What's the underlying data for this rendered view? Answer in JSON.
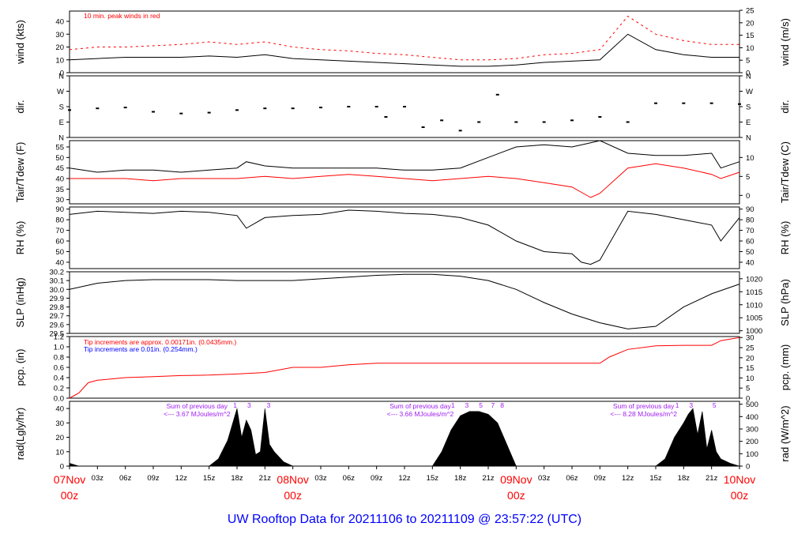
{
  "colors": {
    "black": "#000000",
    "red": "#ff0000",
    "blue": "#0000ff",
    "purple": "#a020f0",
    "title": "#0000ff"
  },
  "title": "UW Rooftop Data for 20211106  to  20211109 @ 23:57:22  (UTC)",
  "xaxis": {
    "day_labels": [
      {
        "hour": 0,
        "top": "07Nov",
        "bottom": "00z"
      },
      {
        "hour": 24,
        "top": "08Nov",
        "bottom": "00z"
      },
      {
        "hour": 48,
        "top": "09Nov",
        "bottom": "00z"
      },
      {
        "hour": 72,
        "top": "10Nov",
        "bottom": "00z"
      }
    ],
    "hour_ticks": [
      "03z",
      "06z",
      "09z",
      "12z",
      "15z",
      "18z",
      "21z"
    ],
    "range_hours": [
      0,
      72
    ]
  },
  "chart_data": [
    {
      "id": "wind",
      "type": "line",
      "ylabel": "wind (kts)",
      "ylabel_right": "wind (m/s)",
      "ylim": [
        0,
        48
      ],
      "yticks": [
        "0",
        "10",
        "20",
        "30",
        "40"
      ],
      "yticks_right": [
        "0",
        "5",
        "10",
        "15",
        "20",
        "25"
      ],
      "yticks_right_values": [
        0,
        5,
        10,
        15,
        20,
        25
      ],
      "annotation": "10 min. peak winds in red",
      "series": [
        {
          "name": "",
          "color": "black",
          "x": [
            0,
            3,
            6,
            9,
            12,
            15,
            18,
            21,
            24,
            27,
            30,
            33,
            36,
            39,
            42,
            45,
            48,
            51,
            54,
            57,
            60,
            63,
            66,
            69,
            72
          ],
          "values": [
            10,
            11,
            12,
            12,
            12,
            13,
            12,
            14,
            11,
            10,
            9,
            8,
            7,
            6,
            5,
            5,
            6,
            8,
            9,
            10,
            30,
            18,
            14,
            12,
            12
          ]
        },
        {
          "name": "10 min. peak winds",
          "color": "red",
          "x": [
            0,
            3,
            6,
            9,
            12,
            15,
            18,
            21,
            24,
            27,
            30,
            33,
            36,
            39,
            42,
            45,
            48,
            51,
            54,
            57,
            60,
            63,
            66,
            69,
            72
          ],
          "values": [
            18,
            20,
            20,
            21,
            22,
            24,
            22,
            24,
            20,
            18,
            17,
            15,
            14,
            12,
            10,
            10,
            11,
            14,
            15,
            18,
            44,
            30,
            25,
            22,
            22
          ]
        }
      ]
    },
    {
      "id": "dir",
      "type": "scatter",
      "ylabel": "dir.",
      "ylabel_right": "dir.",
      "ylim": [
        0,
        360
      ],
      "yticks": [
        "N",
        "E",
        "S",
        "W",
        "N"
      ],
      "yticks_right": [
        "N",
        "E",
        "S",
        "W",
        "N"
      ],
      "yticks_values": [
        0,
        90,
        180,
        270,
        360
      ],
      "series": [
        {
          "name": "",
          "color": "black",
          "x": [
            0,
            3,
            6,
            9,
            12,
            15,
            18,
            21,
            24,
            27,
            30,
            33,
            34,
            36,
            38,
            40,
            42,
            44,
            46,
            48,
            51,
            54,
            57,
            60,
            63,
            66,
            69,
            72
          ],
          "values": [
            160,
            170,
            175,
            150,
            140,
            145,
            160,
            170,
            170,
            175,
            180,
            180,
            120,
            180,
            60,
            100,
            40,
            90,
            250,
            90,
            90,
            100,
            120,
            90,
            200,
            200,
            200,
            195
          ]
        }
      ]
    },
    {
      "id": "temp",
      "type": "line",
      "ylabel": "Tair/Tdew (F)",
      "ylabel_right": "Tair/Tdew (C)",
      "ylim": [
        28,
        58
      ],
      "yticks": [
        "30",
        "35",
        "40",
        "45",
        "50",
        "55"
      ],
      "yticks_right": [
        "0",
        "5",
        "10"
      ],
      "yticks_right_values": [
        0,
        5,
        10
      ],
      "series": [
        {
          "name": "Tair",
          "color": "black",
          "x": [
            0,
            3,
            6,
            9,
            12,
            15,
            18,
            19,
            21,
            24,
            27,
            30,
            33,
            36,
            39,
            42,
            45,
            48,
            51,
            54,
            56,
            57,
            60,
            63,
            66,
            69,
            70,
            72
          ],
          "values": [
            45,
            43,
            44,
            44,
            43,
            44,
            45,
            48,
            46,
            45,
            45,
            45,
            45,
            44,
            44,
            45,
            50,
            55,
            56,
            55,
            57,
            58,
            52,
            51,
            51,
            52,
            45,
            48
          ]
        },
        {
          "name": "Tdew",
          "color": "red",
          "x": [
            0,
            3,
            6,
            9,
            12,
            15,
            18,
            21,
            24,
            27,
            30,
            33,
            36,
            39,
            42,
            45,
            48,
            51,
            54,
            56,
            57,
            60,
            63,
            66,
            69,
            70,
            72
          ],
          "values": [
            40,
            40,
            40,
            39,
            40,
            40,
            40,
            41,
            40,
            41,
            42,
            41,
            40,
            39,
            40,
            41,
            40,
            38,
            36,
            31,
            33,
            45,
            47,
            45,
            42,
            40,
            43
          ]
        }
      ]
    },
    {
      "id": "rh",
      "type": "line",
      "ylabel": "RH (%)",
      "ylabel_right": "RH (%)",
      "ylim": [
        34,
        92
      ],
      "yticks": [
        "40",
        "50",
        "60",
        "70",
        "80",
        "90"
      ],
      "yticks_right": [
        "40",
        "50",
        "60",
        "70",
        "80",
        "90"
      ],
      "series": [
        {
          "name": "",
          "color": "black",
          "x": [
            0,
            3,
            6,
            9,
            12,
            15,
            18,
            19,
            21,
            24,
            27,
            30,
            33,
            36,
            39,
            42,
            45,
            48,
            51,
            54,
            55,
            56,
            57,
            60,
            63,
            66,
            69,
            70,
            72
          ],
          "values": [
            85,
            88,
            87,
            86,
            88,
            87,
            84,
            72,
            82,
            84,
            85,
            89,
            88,
            86,
            85,
            82,
            75,
            60,
            50,
            48,
            40,
            38,
            42,
            88,
            85,
            80,
            75,
            60,
            82
          ]
        }
      ]
    },
    {
      "id": "slp",
      "type": "line",
      "ylabel": "SLP (inHg)",
      "ylabel_right": "SLP (hPa)",
      "ylim": [
        29.5,
        30.2
      ],
      "yticks": [
        "29.5",
        "29.6",
        "29.7",
        "29.8",
        "29.9",
        "30.0",
        "30.1",
        "30.2"
      ],
      "yticks_right": [
        "1000",
        "1005",
        "1010",
        "1015",
        "1020"
      ],
      "yticks_right_values": [
        1000,
        1005,
        1010,
        1015,
        1020
      ],
      "series": [
        {
          "name": "",
          "color": "black",
          "x": [
            0,
            3,
            6,
            9,
            12,
            15,
            18,
            21,
            24,
            27,
            30,
            33,
            36,
            39,
            42,
            45,
            48,
            51,
            54,
            57,
            60,
            63,
            66,
            69,
            72
          ],
          "values": [
            30.0,
            30.07,
            30.1,
            30.11,
            30.11,
            30.11,
            30.1,
            30.1,
            30.1,
            30.12,
            30.14,
            30.16,
            30.17,
            30.17,
            30.15,
            30.1,
            30.0,
            29.85,
            29.72,
            29.62,
            29.55,
            29.58,
            29.8,
            29.95,
            30.06
          ]
        }
      ]
    },
    {
      "id": "pcp",
      "type": "line",
      "ylabel": "pcp. (in)",
      "ylabel_right": "pcp. (mm)",
      "ylim": [
        0,
        1.2
      ],
      "yticks": [
        "0.0",
        "0.2",
        "0.4",
        "0.6",
        "0.8",
        "1.0",
        "1.2"
      ],
      "yticks_right": [
        "0",
        "5",
        "10",
        "15",
        "20",
        "25",
        "30"
      ],
      "yticks_right_values": [
        0,
        5,
        10,
        15,
        20,
        25,
        30
      ],
      "annotations": [
        {
          "text": "Tip increments are approx. 0.00171in. (0.0435mm.)",
          "color": "red"
        },
        {
          "text": "Tip increments are 0.01in. (0.254mm.)",
          "color": "blue"
        }
      ],
      "series": [
        {
          "name": "",
          "color": "red",
          "x": [
            0,
            1,
            2,
            3,
            6,
            9,
            12,
            15,
            18,
            21,
            24,
            27,
            30,
            33,
            36,
            39,
            42,
            45,
            48,
            51,
            54,
            57,
            58,
            60,
            63,
            66,
            69,
            70,
            72
          ],
          "values": [
            0.0,
            0.1,
            0.3,
            0.35,
            0.4,
            0.42,
            0.44,
            0.45,
            0.47,
            0.5,
            0.6,
            0.6,
            0.65,
            0.68,
            0.68,
            0.68,
            0.68,
            0.68,
            0.68,
            0.68,
            0.68,
            0.68,
            0.8,
            0.95,
            1.02,
            1.03,
            1.03,
            1.12,
            1.18
          ]
        }
      ]
    },
    {
      "id": "rad",
      "type": "area",
      "ylabel": "rad(Lgly/hr)",
      "ylabel_right": "rad (W/m^2)",
      "ylim": [
        0,
        45
      ],
      "yticks": [
        "0",
        "10",
        "20",
        "30",
        "40"
      ],
      "yticks_right": [
        "0",
        "100",
        "200",
        "300",
        "400",
        "500"
      ],
      "yticks_right_values": [
        0,
        100,
        200,
        300,
        400,
        500
      ],
      "sum_notes": [
        {
          "hour": 12,
          "line1": "Sum of previous day",
          "line2": "<--- 3.67 MJoules/m^2"
        },
        {
          "hour": 36,
          "line1": "Sum of previous day",
          "line2": "<--- 3.66 MJoules/m^2"
        },
        {
          "hour": 60,
          "line1": "Sum of previous day",
          "line2": "<--- 8.28 MJoules/m^2"
        }
      ],
      "top_digits": [
        {
          "hour": 17.8,
          "text": "1"
        },
        {
          "hour": 19.3,
          "text": "3"
        },
        {
          "hour": 21.4,
          "text": "3"
        },
        {
          "hour": 41.2,
          "text": "1"
        },
        {
          "hour": 42.7,
          "text": "3"
        },
        {
          "hour": 44.2,
          "text": "5"
        },
        {
          "hour": 45.5,
          "text": "7"
        },
        {
          "hour": 46.5,
          "text": "8"
        },
        {
          "hour": 65.3,
          "text": "1"
        },
        {
          "hour": 66.8,
          "text": "3"
        },
        {
          "hour": 69.3,
          "text": "5"
        }
      ],
      "series": [
        {
          "name": "",
          "color": "black",
          "x": [
            0,
            1,
            15,
            16,
            17,
            18,
            18.5,
            19,
            19.5,
            20,
            20.5,
            21,
            21.5,
            22,
            23,
            24,
            39,
            40,
            41,
            42,
            43,
            44,
            45,
            46,
            47,
            48,
            63,
            64,
            65,
            66,
            66.5,
            67,
            67.5,
            68,
            68.5,
            69,
            69.5,
            70,
            71,
            72
          ],
          "values": [
            2,
            0,
            0,
            5,
            18,
            40,
            20,
            32,
            25,
            8,
            10,
            40,
            15,
            10,
            3,
            0,
            0,
            10,
            25,
            35,
            38,
            38,
            36,
            30,
            15,
            0,
            0,
            5,
            20,
            30,
            36,
            40,
            22,
            38,
            12,
            25,
            10,
            5,
            2,
            0
          ]
        }
      ]
    }
  ]
}
